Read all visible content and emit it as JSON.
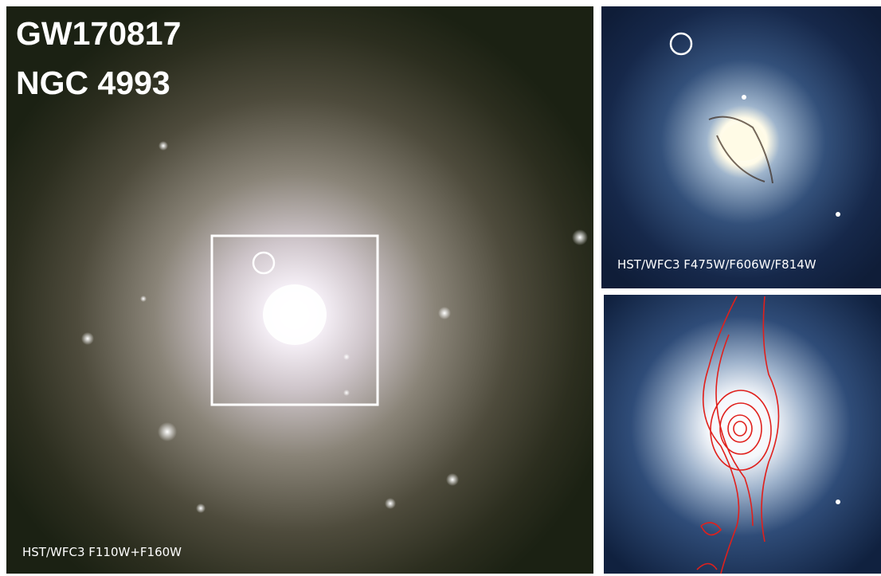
{
  "main_panel": {
    "title_lines": [
      "GW170817",
      "NGC 4993"
    ],
    "caption": "HST/WFC3 F110W+F160W"
  },
  "top_right_panel": {
    "caption": "HST/WFC3 F475W/F606W/F814W"
  }
}
